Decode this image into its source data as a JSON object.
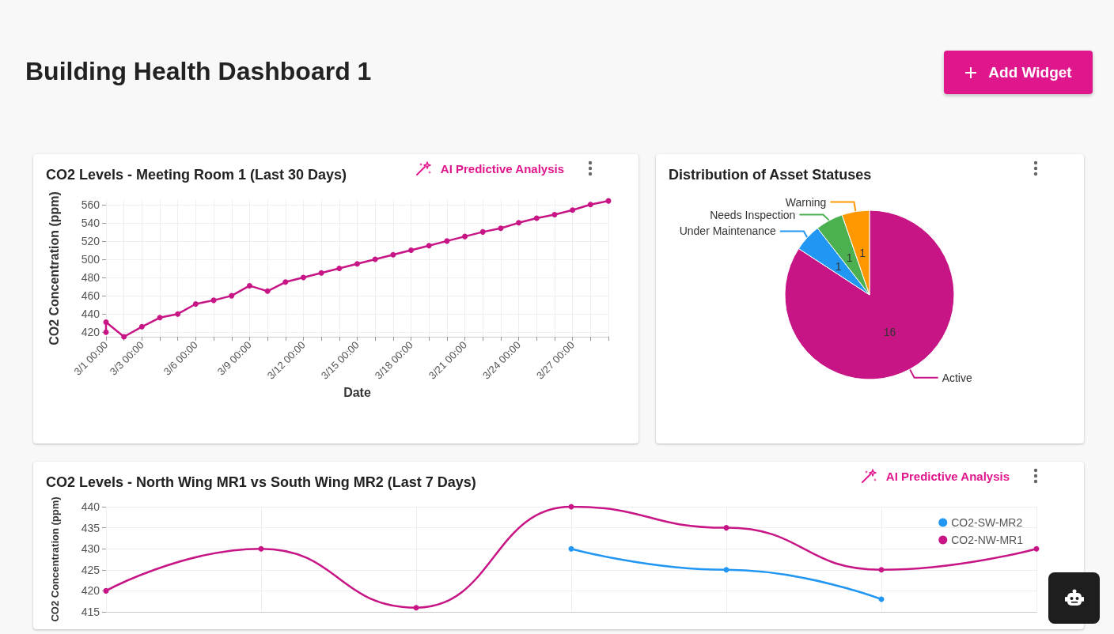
{
  "chart_data": [
    {
      "type": "line",
      "title": "CO2 Levels - Meeting Room 1 (Last 30 Days)",
      "xlabel": "Date",
      "ylabel": "CO2 Concentration (ppm)",
      "annotations": [
        "Building Health Dashboard 1",
        "Add Widget",
        "AI Predictive Analysis"
      ],
      "x": [
        "--03-01",
        "--03-01",
        "--03-02",
        "--03-03",
        "--03-04",
        "--03-05",
        "--03-06",
        "--03-07",
        "--03-08",
        "--03-09",
        "--03-10",
        "--03-11",
        "--03-12",
        "--03-13",
        "--03-14",
        "--03-15",
        "--03-16",
        "--03-17",
        "--03-18",
        "--03-19",
        "--03-20",
        "--03-21",
        "--03-22",
        "--03-23",
        "--03-24",
        "--03-25",
        "--03-26",
        "--03-27",
        "--03-28",
        "--03-29"
      ],
      "series": [
        {
          "color": "#c71585",
          "values": [
            420,
            431,
            415,
            426,
            436,
            440,
            451,
            455,
            460,
            471,
            465,
            475,
            480,
            485,
            490,
            495,
            500,
            505,
            510,
            515,
            520,
            525,
            530,
            534,
            540,
            545,
            549,
            554,
            560,
            564
          ]
        }
      ],
      "xlim": [
        "--03-01",
        "--03-29"
      ],
      "xticks": [
        {
          "value": "--03-01",
          "label": "3/1 00:00"
        },
        {
          "value": "--03-02",
          "label": null
        },
        {
          "value": "--03-03",
          "label": "3/3 00:00"
        },
        {
          "value": "--03-04",
          "label": null
        },
        {
          "value": "--03-05",
          "label": null
        },
        {
          "value": "--03-06",
          "label": "3/6 00:00"
        },
        {
          "value": "--03-07",
          "label": null
        },
        {
          "value": "--03-08",
          "label": null
        },
        {
          "value": "--03-09",
          "label": "3/9 00:00"
        },
        {
          "value": "--03-10",
          "label": null
        },
        {
          "value": "--03-11",
          "label": null
        },
        {
          "value": "--03-12",
          "label": "3/12 00:00"
        },
        {
          "value": "--03-13",
          "label": null
        },
        {
          "value": "--03-14",
          "label": null
        },
        {
          "value": "--03-15",
          "label": "3/15 00:00"
        },
        {
          "value": "--03-16",
          "label": null
        },
        {
          "value": "--03-17",
          "label": null
        },
        {
          "value": "--03-18",
          "label": "3/18 00:00"
        },
        {
          "value": "--03-19",
          "label": null
        },
        {
          "value": "--03-20",
          "label": null
        },
        {
          "value": "--03-21",
          "label": "3/21 00:00"
        },
        {
          "value": "--03-22",
          "label": null
        },
        {
          "value": "--03-23",
          "label": null
        },
        {
          "value": "--03-24",
          "label": "3/24 00:00"
        },
        {
          "value": "--03-25",
          "label": null
        },
        {
          "value": "--03-26",
          "label": null
        },
        {
          "value": "--03-27",
          "label": "3/27 00:00"
        },
        {
          "value": "--03-28",
          "label": null
        },
        {
          "value": "--03-29",
          "label": null
        }
      ],
      "ylim": [
        415,
        565
      ],
      "yticks": [
        420,
        440,
        460,
        480,
        500,
        520,
        540,
        560
      ],
      "grid": true,
      "marker": "circle"
    },
    {
      "type": "pie",
      "title": "Distribution of Asset Statuses",
      "categories": [
        "Active",
        "Under Maintenance",
        "Needs Inspection",
        "Warning"
      ],
      "values": [
        16,
        1,
        1,
        1
      ],
      "colors": [
        "#c71585",
        "#2196f3",
        "#4caf50",
        "#ff9800"
      ],
      "data_labels": true
    },
    {
      "type": "line",
      "title": "CO2 Levels - North Wing MR1 vs South Wing MR2 (Last 7 Days)",
      "ylabel": "CO2 Concentration (ppm)",
      "annotations": [
        "AI Predictive Analysis"
      ],
      "categories": [
        null,
        null,
        null,
        null,
        null,
        null,
        null
      ],
      "series": [
        {
          "name": "CO2-SW-MR2",
          "color": "#2196f3",
          "values": [
            null,
            null,
            null,
            430,
            425,
            418,
            null
          ]
        },
        {
          "name": "CO2-NW-MR1",
          "color": "#c71585",
          "values": [
            420,
            430,
            416,
            440,
            435,
            425,
            430
          ]
        }
      ],
      "ylim": [
        415,
        440
      ],
      "yticks": [
        415,
        420,
        425,
        430,
        435,
        440
      ],
      "grid": true,
      "legend": "top right",
      "marker": "circle"
    }
  ]
}
